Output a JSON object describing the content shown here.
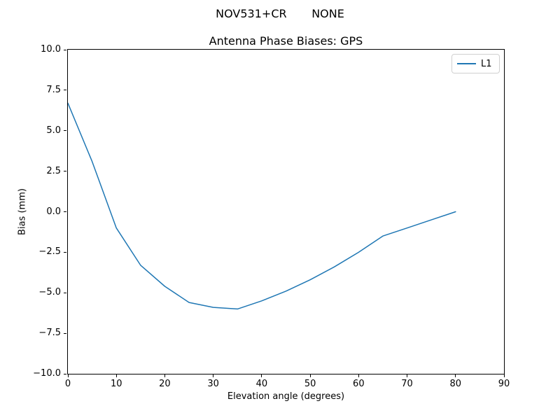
{
  "chart_data": {
    "type": "line",
    "suptitle": "NOV531+CR       NONE",
    "title": "Antenna Phase Biases: GPS",
    "xlabel": "Elevation angle (degrees)",
    "ylabel": "Bias (mm)",
    "xlim": [
      0,
      90
    ],
    "ylim": [
      -10,
      10
    ],
    "grid": false,
    "x_ticks": [
      0,
      10,
      20,
      30,
      40,
      50,
      60,
      70,
      80,
      90
    ],
    "x_tick_labels": [
      "0",
      "10",
      "20",
      "30",
      "40",
      "50",
      "60",
      "70",
      "80",
      "90"
    ],
    "y_ticks": [
      10,
      7.5,
      5,
      2.5,
      0,
      -2.5,
      -5,
      -7.5,
      -10
    ],
    "y_tick_labels": [
      "10.0",
      "7.5",
      "5.0",
      "2.5",
      "0.0",
      "−2.5",
      "−5.0",
      "−7.5",
      "−10.0"
    ],
    "legend": {
      "position": "upper right",
      "entries": [
        {
          "label": "L1",
          "color": "#1f77b4"
        }
      ]
    },
    "series": [
      {
        "name": "L1",
        "color": "#1f77b4",
        "x": [
          0,
          5,
          10,
          15,
          20,
          25,
          30,
          35,
          40,
          45,
          50,
          55,
          60,
          65,
          70,
          75,
          80
        ],
        "y": [
          6.7,
          3.1,
          -1.0,
          -3.3,
          -4.6,
          -5.6,
          -5.9,
          -6.0,
          -5.5,
          -4.9,
          -4.2,
          -3.4,
          -2.5,
          -1.5,
          -1.0,
          -0.5,
          0.0
        ]
      }
    ]
  }
}
